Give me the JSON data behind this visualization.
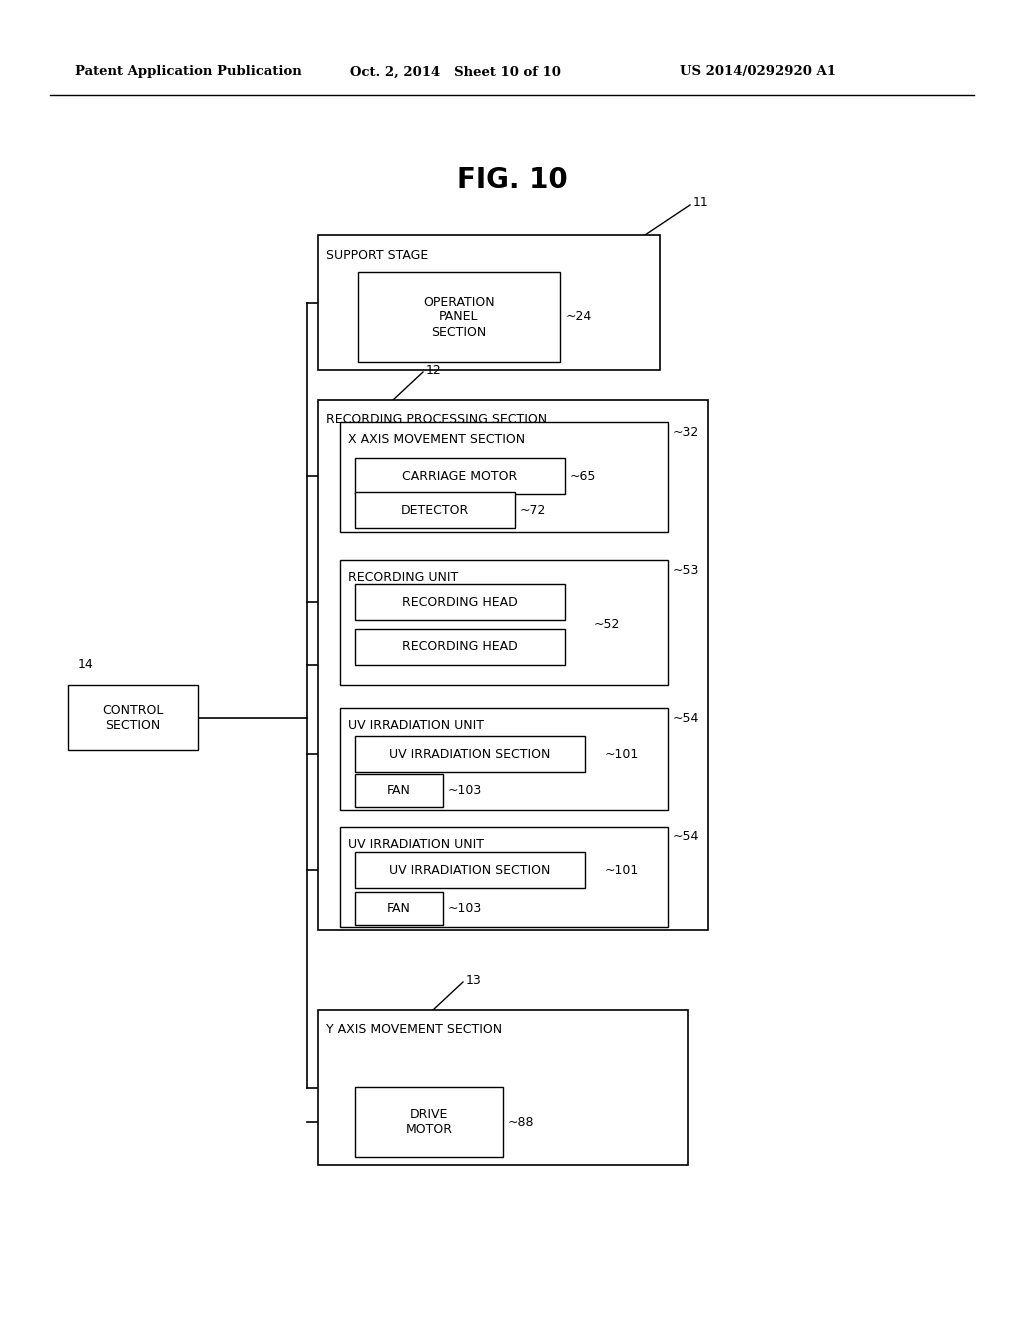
{
  "title": "FIG. 10",
  "header_left": "Patent Application Publication",
  "header_mid": "Oct. 2, 2014   Sheet 10 of 10",
  "header_right": "US 2014/0292920 A1",
  "bg_color": "#ffffff",
  "text_color": "#000000",
  "fig_width": 10.24,
  "fig_height": 13.2,
  "dpi": 100
}
